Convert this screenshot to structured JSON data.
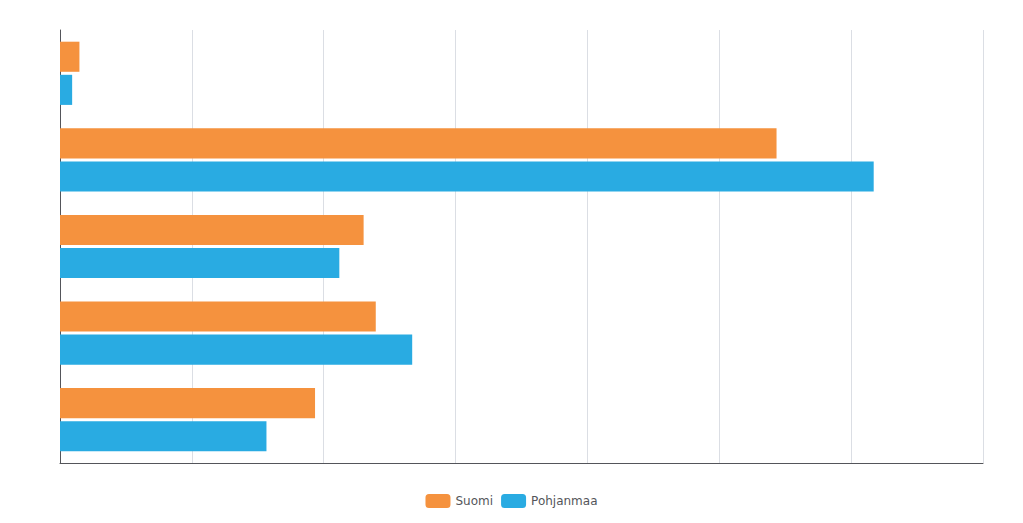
{
  "chart_data": {
    "type": "bar",
    "orientation": "horizontal",
    "categories": [
      null,
      null,
      null,
      null,
      null
    ],
    "series": [
      {
        "name": "Suomi",
        "color": "#F5923E",
        "values": [
          10.5,
          13.0,
          12.5,
          29.5,
          0.8
        ]
      },
      {
        "name": "Pohjanmaa",
        "color": "#29ABE2",
        "values": [
          8.5,
          14.5,
          11.5,
          33.5,
          0.5
        ]
      }
    ],
    "xlim": [
      0,
      38
    ],
    "xticks": [
      0,
      5.428571428571429,
      10.857142857142858,
      16.285714285714285,
      21.714285714285715,
      27.142857142857142,
      32.57142857142857,
      38
    ],
    "grid": true,
    "legend": "bottom",
    "tick_labels": false
  }
}
